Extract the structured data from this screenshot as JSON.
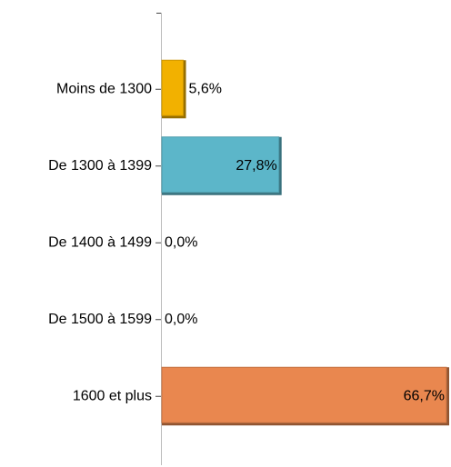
{
  "chart_data": {
    "type": "bar",
    "orientation": "horizontal",
    "categories": [
      "Moins de 1300",
      "De 1300 à 1399",
      "De 1400 à 1499",
      "De 1500 à 1599",
      "1600 et plus"
    ],
    "values": [
      5.6,
      27.8,
      0.0,
      0.0,
      66.7
    ],
    "value_labels": [
      "5,6%",
      "27,8%",
      "0,0%",
      "0,0%",
      "66,7%"
    ],
    "colors": [
      "#f2b100",
      "#5cb6c9",
      "#5cb6c9",
      "#5cb6c9",
      "#e9874f"
    ]
  }
}
